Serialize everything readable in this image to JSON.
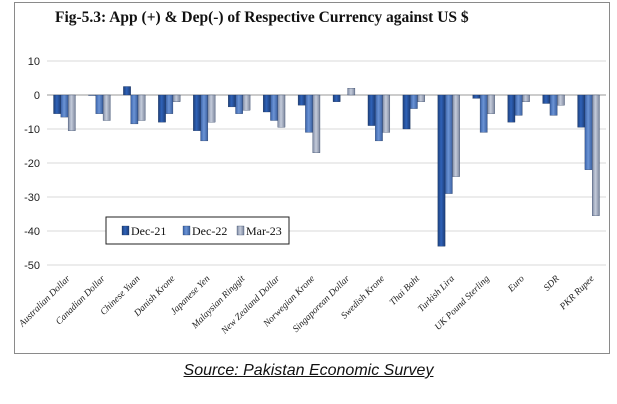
{
  "chart_data": {
    "type": "bar",
    "title": "Fig-5.3: App (+) & Dep(-) of Respective Currency against US $",
    "xlabel": "",
    "ylabel": "",
    "ylim": [
      -50,
      10
    ],
    "yticks": [
      10,
      0,
      -10,
      -20,
      -30,
      -40,
      -50
    ],
    "grid": true,
    "legend_position": "bottom-left, inside plot",
    "categories": [
      "Australian Dollar",
      "Canadian Dollar",
      "Chinese Yuan",
      "Danish Krone",
      "Japanese Yen",
      "Malaysian Ringgit",
      "New Zealand Dollar",
      "Norwegian Krone",
      "Singaporean Dollar",
      "Swedish Krone",
      "Thai Baht",
      "Turkish Lira",
      "UK Pound Sterling",
      "Euro",
      "SDR",
      "PKR Rupee"
    ],
    "series": [
      {
        "name": "Dec-21",
        "color": "#2a5aa8",
        "values": [
          -5.5,
          -0.1,
          2.5,
          -8.0,
          -10.5,
          -3.5,
          -5.0,
          -3.0,
          -2.0,
          -9.0,
          -10.0,
          -44.5,
          -1.0,
          -8.0,
          -2.5,
          -9.5
        ]
      },
      {
        "name": "Dec-22",
        "color": "#4d79bd",
        "values": [
          -6.5,
          -5.5,
          -8.5,
          -5.5,
          -13.5,
          -5.5,
          -7.5,
          -11.0,
          0.0,
          -13.5,
          -4.0,
          -29.0,
          -11.0,
          -6.0,
          -6.0,
          -22.0
        ]
      },
      {
        "name": "Mar-23",
        "color": "#9ea9bf",
        "values": [
          -10.5,
          -7.5,
          -7.5,
          -2.0,
          -8.0,
          -4.5,
          -9.5,
          -17.0,
          2.0,
          -11.0,
          -2.0,
          -24.0,
          -5.5,
          -2.0,
          -3.0,
          -35.5
        ]
      }
    ]
  },
  "source": "Source: Pakistan Economic Survey"
}
